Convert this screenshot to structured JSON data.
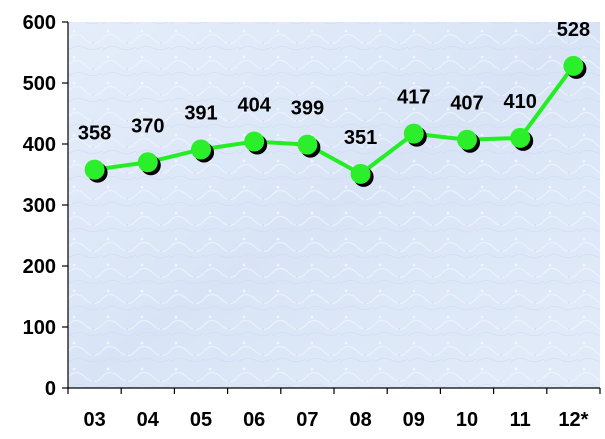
{
  "colors": {
    "plot_background": "#dbe6f7",
    "plot_texture": "#eef3fb",
    "line": "#22ee22",
    "marker": "#2bef2b",
    "marker_shadow": "#000000",
    "axis": "#000000",
    "text": "#000000"
  },
  "chart_data": {
    "type": "line",
    "categories": [
      "03",
      "04",
      "05",
      "06",
      "07",
      "08",
      "09",
      "10",
      "11",
      "12*"
    ],
    "series": [
      {
        "values": [
          358,
          370,
          391,
          404,
          399,
          351,
          417,
          407,
          410,
          528
        ]
      }
    ],
    "data_labels": [
      "358",
      "370",
      "391",
      "404",
      "399",
      "351",
      "417",
      "407",
      "410",
      "528"
    ],
    "title": "",
    "xlabel": "",
    "ylabel": "",
    "ylim": [
      0,
      600
    ],
    "yticks": [
      0,
      100,
      200,
      300,
      400,
      500,
      600
    ],
    "ytick_labels": [
      "0",
      "100",
      "200",
      "300",
      "400",
      "500",
      "600"
    ],
    "grid": false,
    "legend": "none"
  }
}
